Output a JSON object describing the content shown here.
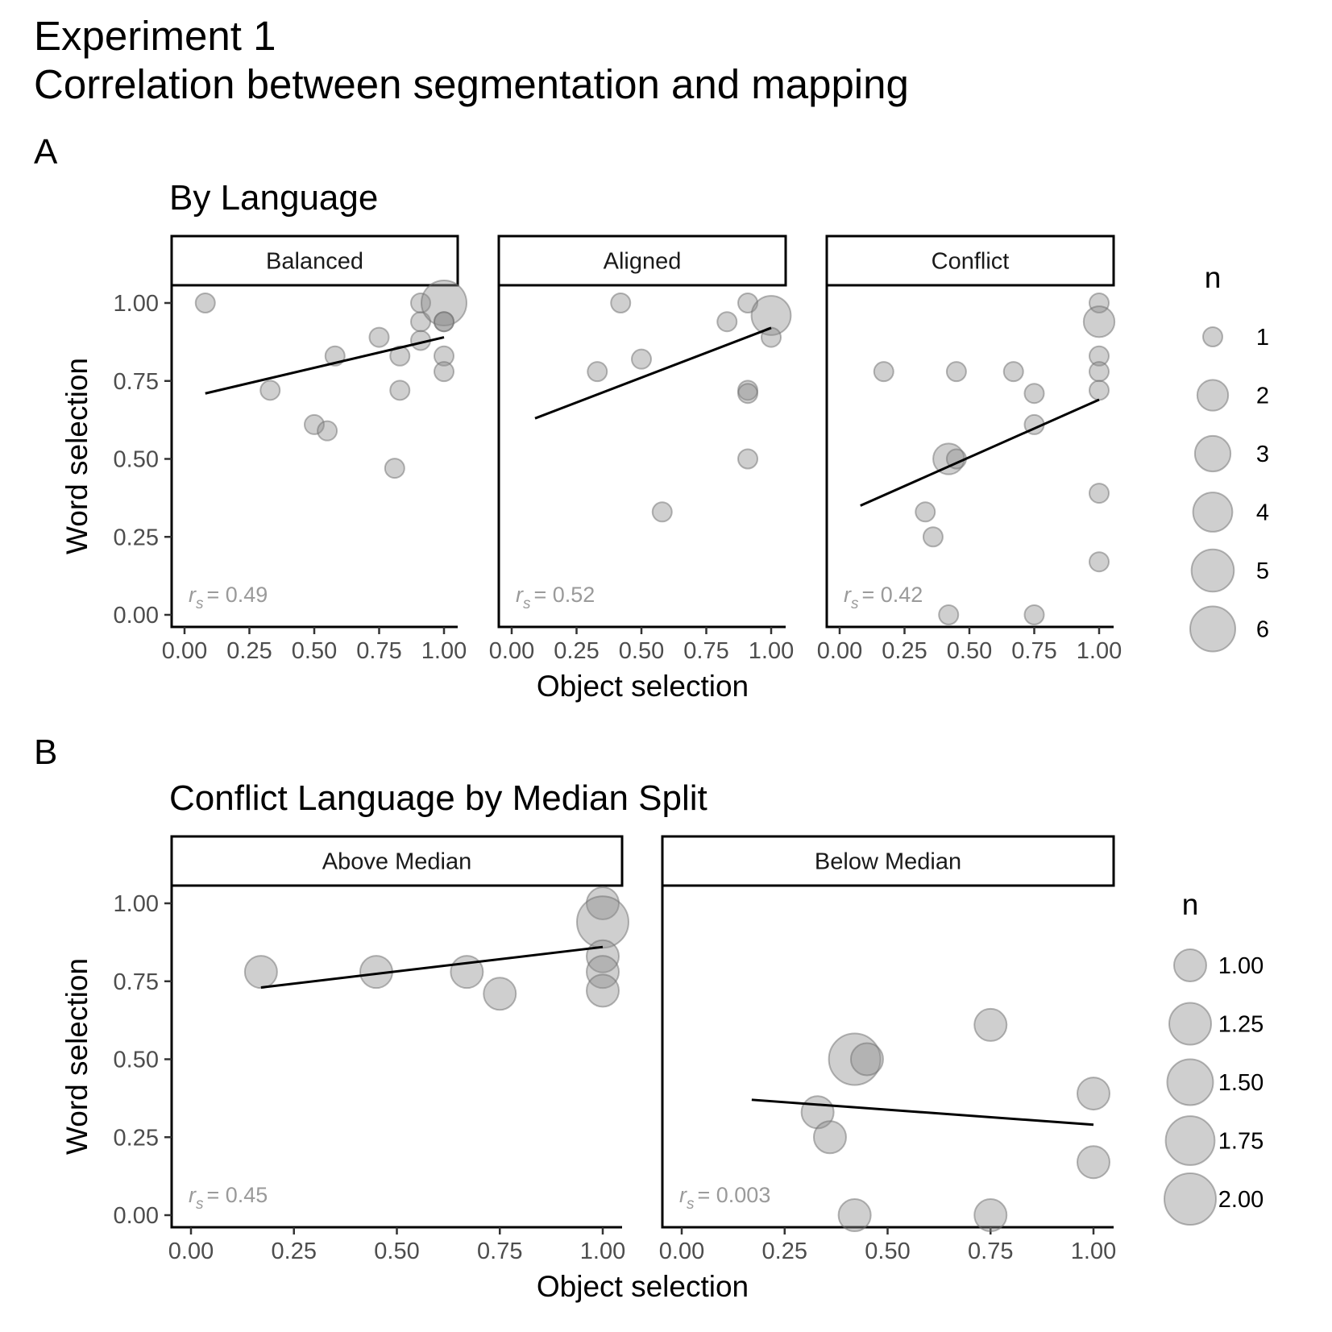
{
  "title_line1": "Experiment 1",
  "title_line2": "Correlation between segmentation and mapping",
  "chart_data": [
    {
      "type": "scatter",
      "tag": "A",
      "title": "By Language",
      "xlabel": "Object selection",
      "ylabel": "Word selection",
      "xlim": [
        0,
        1
      ],
      "ylim": [
        0,
        1
      ],
      "x_ticks": [
        "0.00",
        "0.25",
        "0.50",
        "0.75",
        "1.00"
      ],
      "y_ticks": [
        "0.00",
        "0.25",
        "0.50",
        "0.75",
        "1.00"
      ],
      "legend": {
        "title": "n",
        "position": "right",
        "labels": [
          "1",
          "2",
          "3",
          "4",
          "5",
          "6"
        ],
        "sizes": [
          1,
          2,
          3,
          4,
          5,
          6
        ]
      },
      "size_range": [
        1,
        6
      ],
      "point_color": "#8c8c8c",
      "panels": [
        {
          "strip": "Balanced",
          "rs_label": "= 0.49",
          "fit": [
            [
              0.08,
              0.71
            ],
            [
              1.0,
              0.89
            ]
          ],
          "points": [
            {
              "x": 0.08,
              "y": 1.0,
              "n": 1
            },
            {
              "x": 0.33,
              "y": 0.72,
              "n": 1
            },
            {
              "x": 0.5,
              "y": 0.61,
              "n": 1
            },
            {
              "x": 0.55,
              "y": 0.59,
              "n": 1
            },
            {
              "x": 0.58,
              "y": 0.83,
              "n": 1
            },
            {
              "x": 0.75,
              "y": 0.89,
              "n": 1
            },
            {
              "x": 0.81,
              "y": 0.47,
              "n": 1
            },
            {
              "x": 0.83,
              "y": 0.72,
              "n": 1
            },
            {
              "x": 0.83,
              "y": 0.83,
              "n": 1
            },
            {
              "x": 0.91,
              "y": 1.0,
              "n": 1
            },
            {
              "x": 0.91,
              "y": 0.94,
              "n": 1
            },
            {
              "x": 0.91,
              "y": 0.88,
              "n": 1
            },
            {
              "x": 1.0,
              "y": 1.0,
              "n": 6
            },
            {
              "x": 1.0,
              "y": 0.94,
              "n": 1
            },
            {
              "x": 1.0,
              "y": 0.94,
              "n": 1
            },
            {
              "x": 1.0,
              "y": 0.83,
              "n": 1
            },
            {
              "x": 1.0,
              "y": 0.78,
              "n": 1
            }
          ]
        },
        {
          "strip": "Aligned",
          "rs_label": "= 0.52",
          "fit": [
            [
              0.09,
              0.63
            ],
            [
              1.0,
              0.92
            ]
          ],
          "points": [
            {
              "x": 0.33,
              "y": 0.78,
              "n": 1
            },
            {
              "x": 0.42,
              "y": 1.0,
              "n": 1
            },
            {
              "x": 0.5,
              "y": 0.82,
              "n": 1
            },
            {
              "x": 0.58,
              "y": 0.33,
              "n": 1
            },
            {
              "x": 0.83,
              "y": 0.94,
              "n": 1
            },
            {
              "x": 0.91,
              "y": 1.0,
              "n": 1
            },
            {
              "x": 0.91,
              "y": 0.72,
              "n": 1
            },
            {
              "x": 0.91,
              "y": 0.71,
              "n": 1
            },
            {
              "x": 0.91,
              "y": 0.5,
              "n": 1
            },
            {
              "x": 1.0,
              "y": 0.96,
              "n": 4
            },
            {
              "x": 1.0,
              "y": 0.89,
              "n": 1
            }
          ]
        },
        {
          "strip": "Conflict",
          "rs_label": "= 0.42",
          "fit": [
            [
              0.08,
              0.35
            ],
            [
              1.0,
              0.69
            ]
          ],
          "points": [
            {
              "x": 0.17,
              "y": 0.78,
              "n": 1
            },
            {
              "x": 0.33,
              "y": 0.33,
              "n": 1
            },
            {
              "x": 0.36,
              "y": 0.25,
              "n": 1
            },
            {
              "x": 0.42,
              "y": 0.5,
              "n": 2
            },
            {
              "x": 0.42,
              "y": 0.0,
              "n": 1
            },
            {
              "x": 0.45,
              "y": 0.5,
              "n": 1
            },
            {
              "x": 0.45,
              "y": 0.78,
              "n": 1
            },
            {
              "x": 0.67,
              "y": 0.78,
              "n": 1
            },
            {
              "x": 0.75,
              "y": 0.71,
              "n": 1
            },
            {
              "x": 0.75,
              "y": 0.61,
              "n": 1
            },
            {
              "x": 0.75,
              "y": 0.0,
              "n": 1
            },
            {
              "x": 1.0,
              "y": 1.0,
              "n": 1
            },
            {
              "x": 1.0,
              "y": 0.94,
              "n": 2
            },
            {
              "x": 1.0,
              "y": 0.83,
              "n": 1
            },
            {
              "x": 1.0,
              "y": 0.78,
              "n": 1
            },
            {
              "x": 1.0,
              "y": 0.72,
              "n": 1
            },
            {
              "x": 1.0,
              "y": 0.39,
              "n": 1
            },
            {
              "x": 1.0,
              "y": 0.17,
              "n": 1
            }
          ]
        }
      ]
    },
    {
      "type": "scatter",
      "tag": "B",
      "title": "Conflict Language by Median Split",
      "xlabel": "Object selection",
      "ylabel": "Word selection",
      "xlim": [
        0,
        1
      ],
      "ylim": [
        0,
        1
      ],
      "x_ticks": [
        "0.00",
        "0.25",
        "0.50",
        "0.75",
        "1.00"
      ],
      "y_ticks": [
        "0.00",
        "0.25",
        "0.50",
        "0.75",
        "1.00"
      ],
      "legend": {
        "title": "n",
        "position": "right",
        "labels": [
          "1.00",
          "1.25",
          "1.50",
          "1.75",
          "2.00"
        ],
        "sizes": [
          1,
          1.25,
          1.5,
          1.75,
          2
        ]
      },
      "size_range": [
        1,
        2
      ],
      "point_color": "#8c8c8c",
      "panels": [
        {
          "strip": "Above Median",
          "rs_label": "= 0.45",
          "fit": [
            [
              0.17,
              0.73
            ],
            [
              1.0,
              0.86
            ]
          ],
          "points": [
            {
              "x": 0.17,
              "y": 0.78,
              "n": 1
            },
            {
              "x": 0.45,
              "y": 0.78,
              "n": 1
            },
            {
              "x": 0.67,
              "y": 0.78,
              "n": 1
            },
            {
              "x": 0.75,
              "y": 0.71,
              "n": 1
            },
            {
              "x": 1.0,
              "y": 1.0,
              "n": 1
            },
            {
              "x": 1.0,
              "y": 0.94,
              "n": 2
            },
            {
              "x": 1.0,
              "y": 0.83,
              "n": 1
            },
            {
              "x": 1.0,
              "y": 0.78,
              "n": 1
            },
            {
              "x": 1.0,
              "y": 0.72,
              "n": 1
            }
          ]
        },
        {
          "strip": "Below Median",
          "rs_label": "= 0.003",
          "fit": [
            [
              0.17,
              0.37
            ],
            [
              1.0,
              0.29
            ]
          ],
          "points": [
            {
              "x": 0.33,
              "y": 0.33,
              "n": 1
            },
            {
              "x": 0.36,
              "y": 0.25,
              "n": 1
            },
            {
              "x": 0.42,
              "y": 0.5,
              "n": 2
            },
            {
              "x": 0.45,
              "y": 0.5,
              "n": 1
            },
            {
              "x": 0.42,
              "y": 0.0,
              "n": 1
            },
            {
              "x": 0.75,
              "y": 0.61,
              "n": 1
            },
            {
              "x": 0.75,
              "y": 0.0,
              "n": 1
            },
            {
              "x": 1.0,
              "y": 0.39,
              "n": 1
            },
            {
              "x": 1.0,
              "y": 0.17,
              "n": 1
            }
          ]
        }
      ]
    }
  ]
}
